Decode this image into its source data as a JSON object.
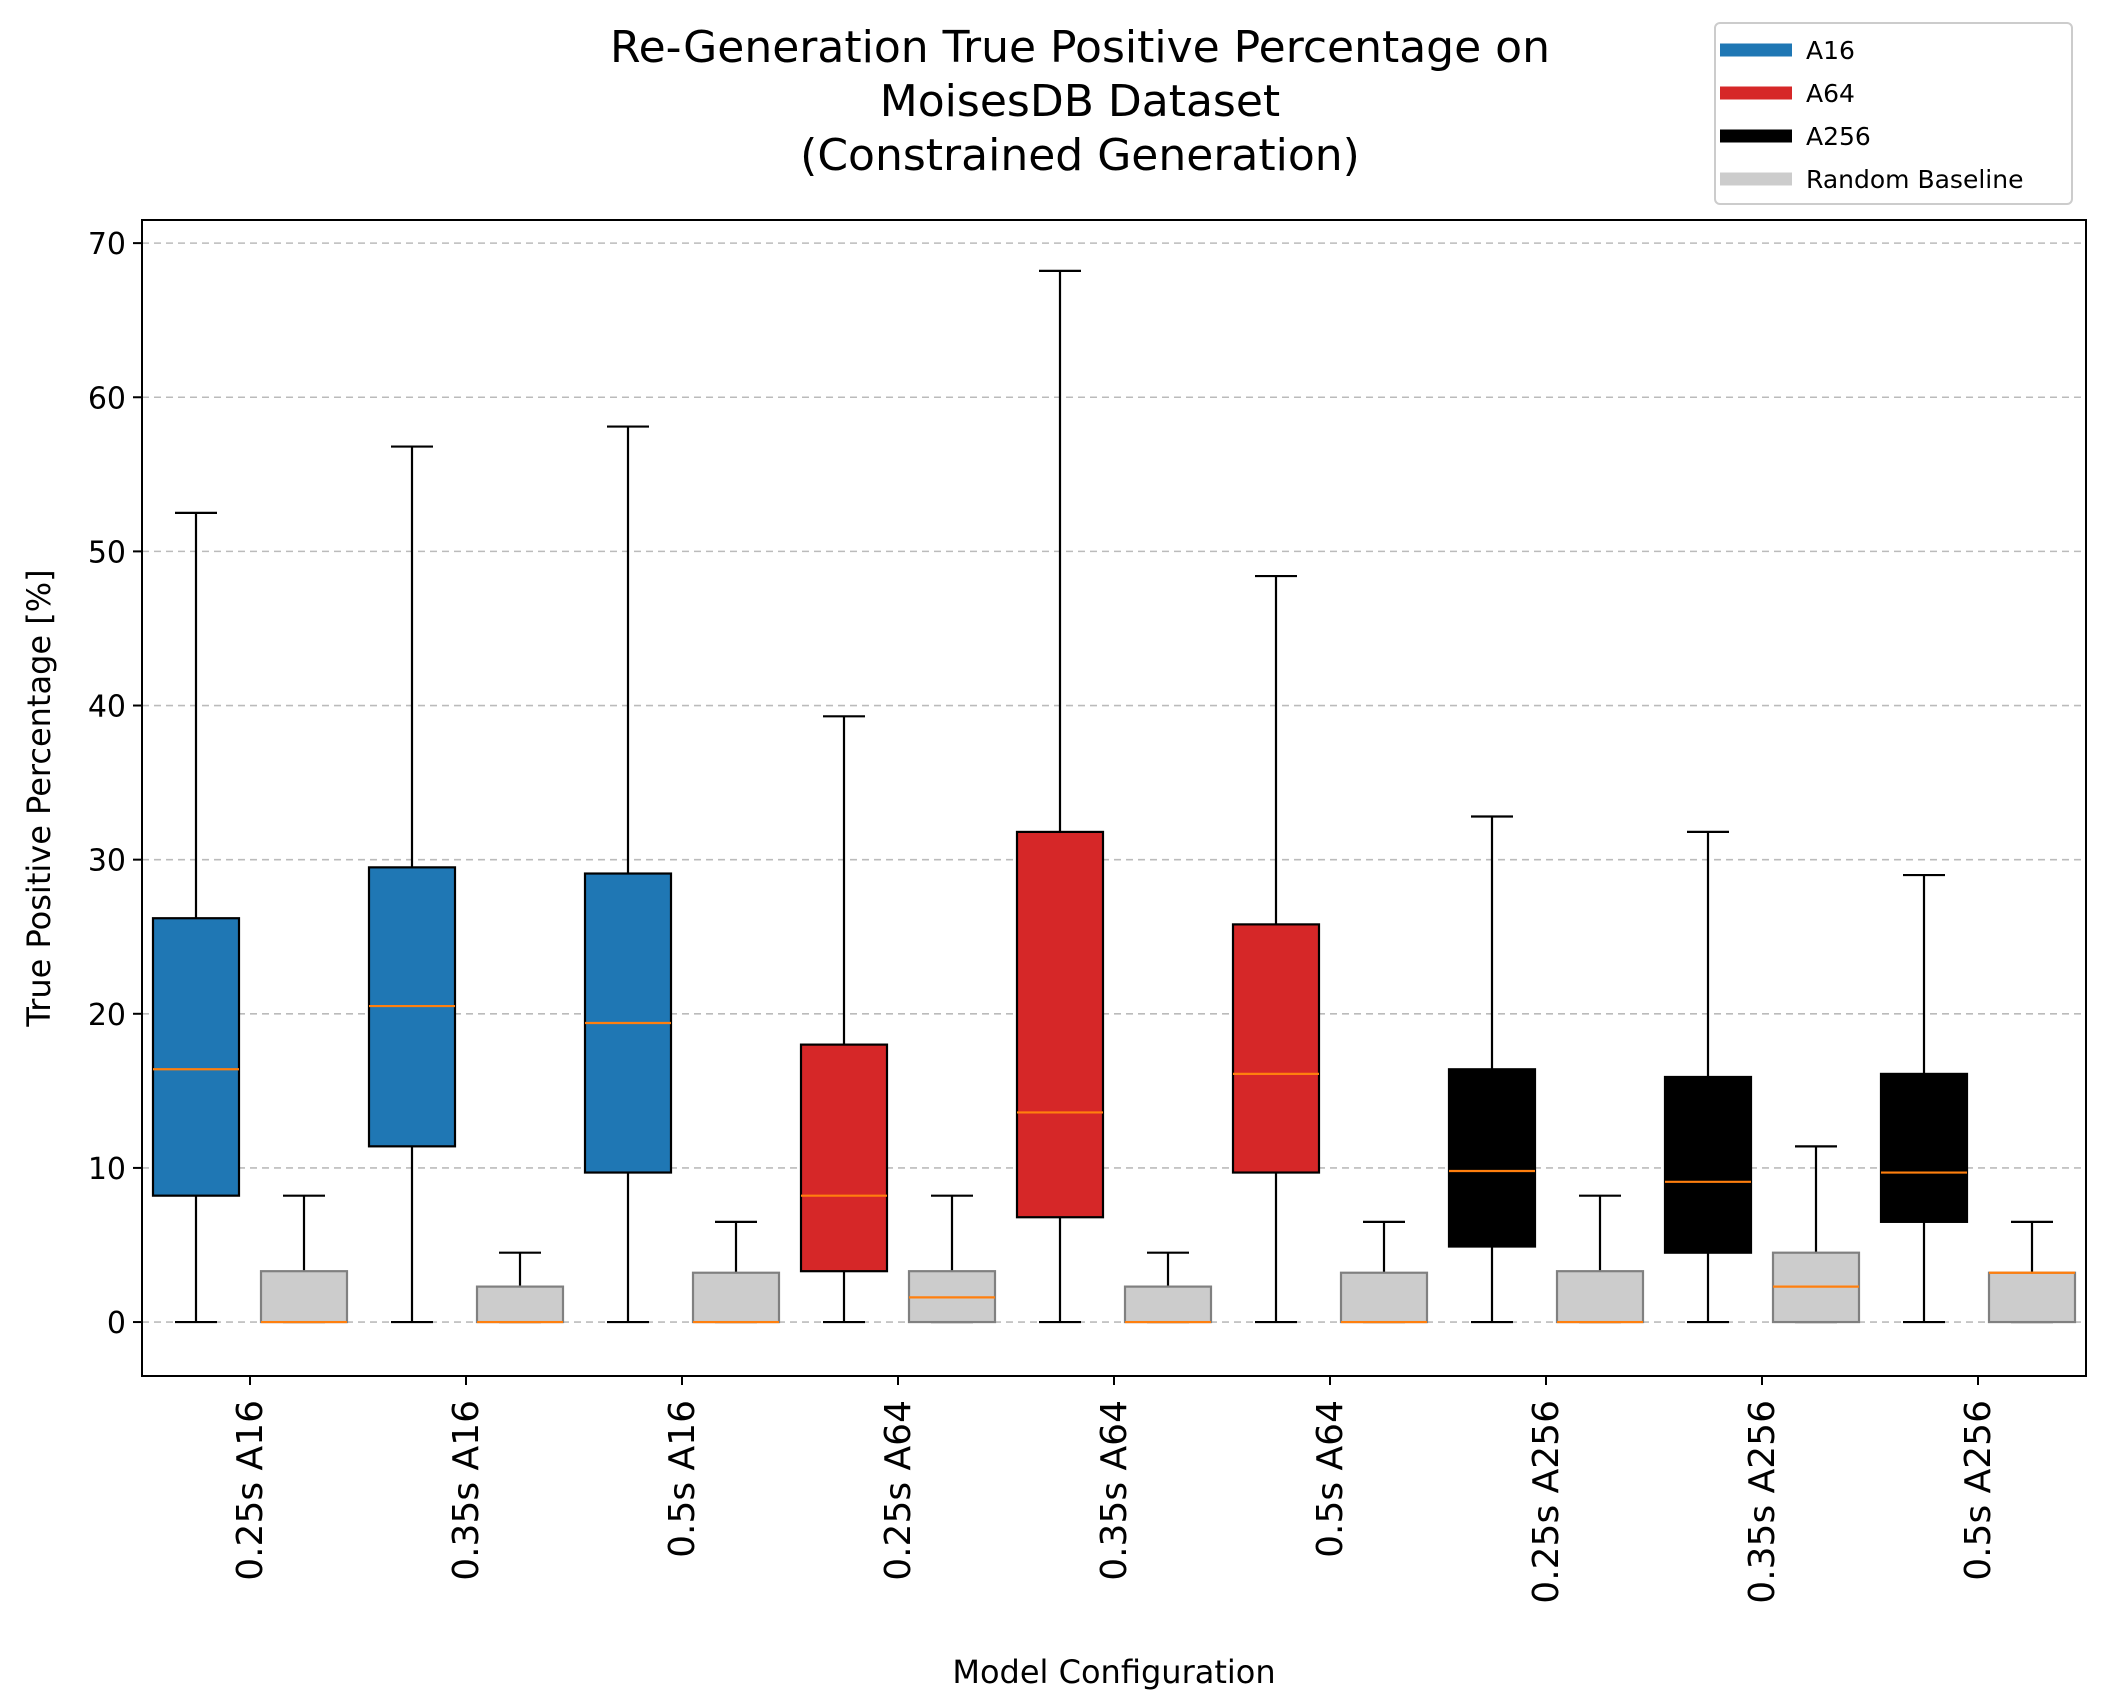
{
  "chart_data": {
    "type": "box",
    "title": [
      "Re-Generation True Positive Percentage  on",
      "MoisesDB Dataset",
      "(Constrained Generation)"
    ],
    "xlabel": "Model Configuration",
    "ylabel": "True Positive Percentage  [%]",
    "ylim": [
      -3.5,
      71.5
    ],
    "yticks": [
      0,
      10,
      20,
      30,
      40,
      50,
      60,
      70
    ],
    "grid": "y-dashed",
    "legend_position": "top-right",
    "categories": [
      "0.25s A16",
      "0.35s A16",
      "0.5s A16",
      "0.25s A64",
      "0.35s A64",
      "0.5s A64",
      "0.25s A256",
      "0.35s A256",
      "0.5s A256"
    ],
    "series": [
      {
        "name": "A16",
        "color": "#1f77b4",
        "stats": [
          {
            "whislo": 0,
            "q1": 8.2,
            "med": 16.4,
            "q3": 26.2,
            "whishi": 52.5
          },
          {
            "whislo": 0,
            "q1": 11.4,
            "med": 20.5,
            "q3": 29.5,
            "whishi": 56.8
          },
          {
            "whislo": 0,
            "q1": 9.7,
            "med": 19.4,
            "q3": 29.1,
            "whishi": 58.1
          }
        ],
        "category_index": [
          0,
          1,
          2
        ]
      },
      {
        "name": "A64",
        "color": "#d62728",
        "stats": [
          {
            "whislo": 0,
            "q1": 3.3,
            "med": 8.2,
            "q3": 18.0,
            "whishi": 39.3
          },
          {
            "whislo": 0,
            "q1": 6.8,
            "med": 13.6,
            "q3": 31.8,
            "whishi": 68.2
          },
          {
            "whislo": 0,
            "q1": 9.7,
            "med": 16.1,
            "q3": 25.8,
            "whishi": 48.4
          }
        ],
        "category_index": [
          3,
          4,
          5
        ]
      },
      {
        "name": "A256",
        "color": "#000000",
        "stats": [
          {
            "whislo": 0,
            "q1": 4.9,
            "med": 9.8,
            "q3": 16.4,
            "whishi": 32.8
          },
          {
            "whislo": 0,
            "q1": 4.5,
            "med": 9.1,
            "q3": 15.9,
            "whishi": 31.8
          },
          {
            "whislo": 0,
            "q1": 6.5,
            "med": 9.7,
            "q3": 16.1,
            "whishi": 29.0
          }
        ],
        "category_index": [
          6,
          7,
          8
        ]
      },
      {
        "name": "Random Baseline",
        "color": "#cccccc",
        "stats": [
          {
            "whislo": 0,
            "q1": 0,
            "med": 0,
            "q3": 3.3,
            "whishi": 8.2
          },
          {
            "whislo": 0,
            "q1": 0,
            "med": 0,
            "q3": 2.3,
            "whishi": 4.5
          },
          {
            "whislo": 0,
            "q1": 0,
            "med": 0,
            "q3": 3.2,
            "whishi": 6.5
          },
          {
            "whislo": 0,
            "q1": 0,
            "med": 1.6,
            "q3": 3.3,
            "whishi": 8.2
          },
          {
            "whislo": 0,
            "q1": 0,
            "med": 0,
            "q3": 2.3,
            "whishi": 4.5
          },
          {
            "whislo": 0,
            "q1": 0,
            "med": 0,
            "q3": 3.2,
            "whishi": 6.5
          },
          {
            "whislo": 0,
            "q1": 0,
            "med": 0,
            "q3": 3.3,
            "whishi": 8.2
          },
          {
            "whislo": 0,
            "q1": 0,
            "med": 2.3,
            "q3": 4.5,
            "whishi": 11.4
          },
          {
            "whislo": 0,
            "q1": 0,
            "med": 3.2,
            "q3": 3.2,
            "whishi": 6.5
          }
        ],
        "category_index": [
          0,
          1,
          2,
          3,
          4,
          5,
          6,
          7,
          8
        ]
      }
    ],
    "median_color": "#ff7f0e"
  }
}
